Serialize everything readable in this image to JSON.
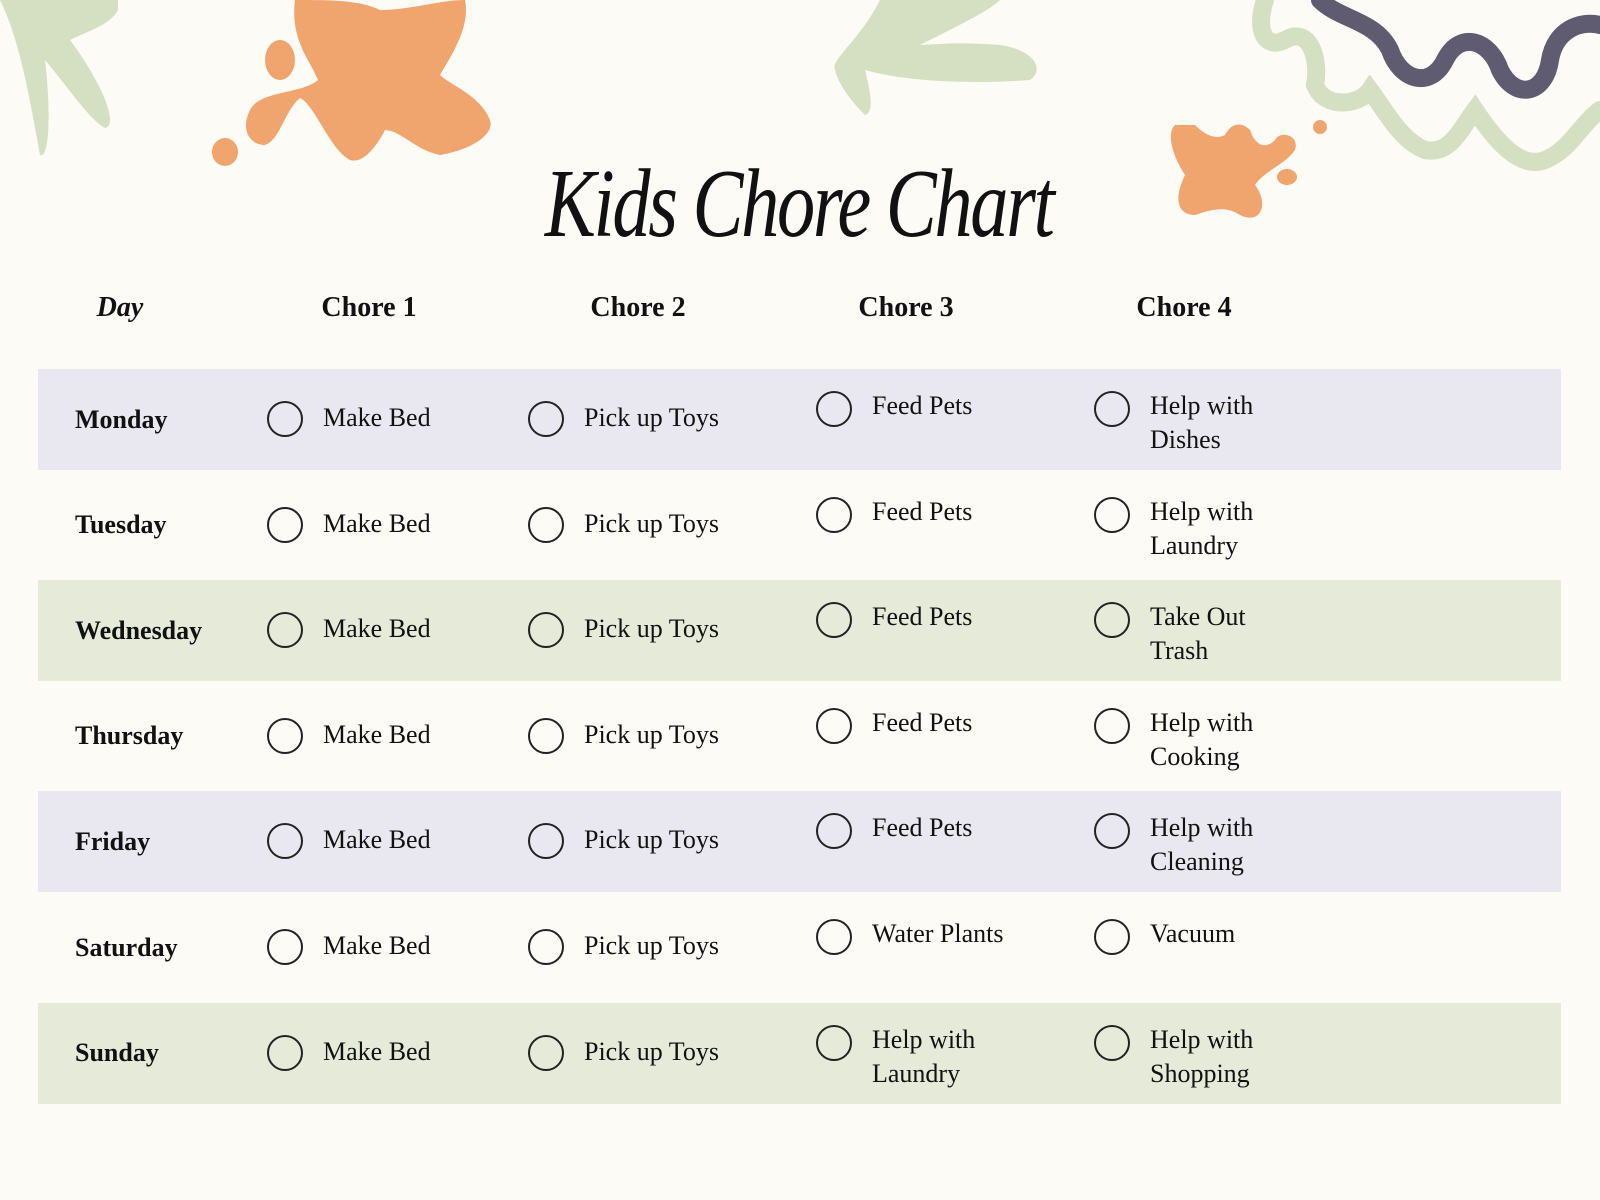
{
  "title": "Kids Chore Chart",
  "colors": {
    "background": "#fdfbf5",
    "orange": "#f0a46e",
    "sage": "#d5dfc2",
    "purple": "#5f5b70",
    "lavender_row": "#e9e8f0",
    "green_row": "#e6ebd9"
  },
  "headers": [
    "Day",
    "Chore 1",
    "Chore 2",
    "Chore 3",
    "Chore 4"
  ],
  "rows": [
    {
      "day": "Monday",
      "chores": [
        "Make Bed",
        "Pick up Toys",
        "Feed Pets",
        "Help with Dishes"
      ]
    },
    {
      "day": "Tuesday",
      "chores": [
        "Make Bed",
        "Pick up Toys",
        "Feed Pets",
        "Help with Laundry"
      ]
    },
    {
      "day": "Wednesday",
      "chores": [
        "Make Bed",
        "Pick up Toys",
        "Feed Pets",
        "Take Out Trash"
      ]
    },
    {
      "day": "Thursday",
      "chores": [
        "Make Bed",
        "Pick up Toys",
        "Feed Pets",
        "Help with Cooking"
      ]
    },
    {
      "day": "Friday",
      "chores": [
        "Make Bed",
        "Pick up Toys",
        "Feed Pets",
        "Help with Cleaning"
      ]
    },
    {
      "day": "Saturday",
      "chores": [
        "Make Bed",
        "Pick up Toys",
        "Water Plants",
        "Vacuum"
      ]
    },
    {
      "day": "Sunday",
      "chores": [
        "Make Bed",
        "Pick up Toys",
        "Help with Laundry",
        "Help with Shopping"
      ]
    }
  ]
}
